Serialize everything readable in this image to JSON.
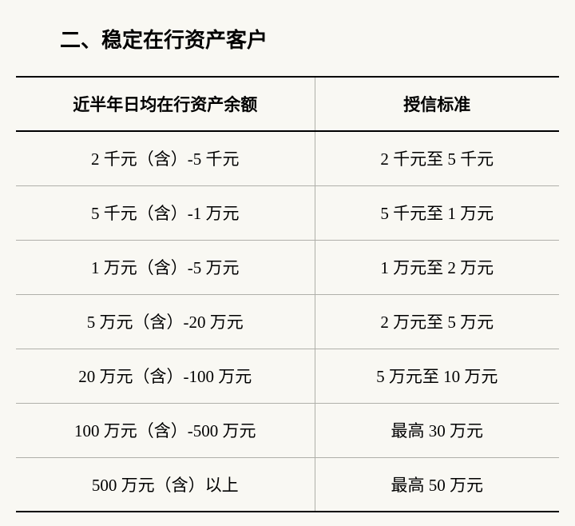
{
  "title": "二、稳定在行资产客户",
  "table": {
    "type": "table",
    "background_color": "#f9f8f3",
    "border_color_outer": "#000000",
    "border_color_inner": "#b0b0aa",
    "header_fontsize": 21,
    "cell_fontsize": 21,
    "text_color": "#000000",
    "columns": [
      {
        "label": "近半年日均在行资产余额",
        "width_pct": 55
      },
      {
        "label": "授信标准",
        "width_pct": 45
      }
    ],
    "rows": [
      {
        "c0": "2 千元（含）-5 千元",
        "c1": "2 千元至 5 千元"
      },
      {
        "c0": "5 千元（含）-1 万元",
        "c1": "5 千元至 1 万元"
      },
      {
        "c0": "1 万元（含）-5 万元",
        "c1": "1 万元至 2 万元"
      },
      {
        "c0": "5 万元（含）-20 万元",
        "c1": "2 万元至 5 万元"
      },
      {
        "c0": "20 万元（含）-100 万元",
        "c1": "5 万元至 10 万元"
      },
      {
        "c0": "100 万元（含）-500 万元",
        "c1": "最高 30 万元"
      },
      {
        "c0": "500 万元（含）以上",
        "c1": "最高 50 万元"
      }
    ]
  }
}
